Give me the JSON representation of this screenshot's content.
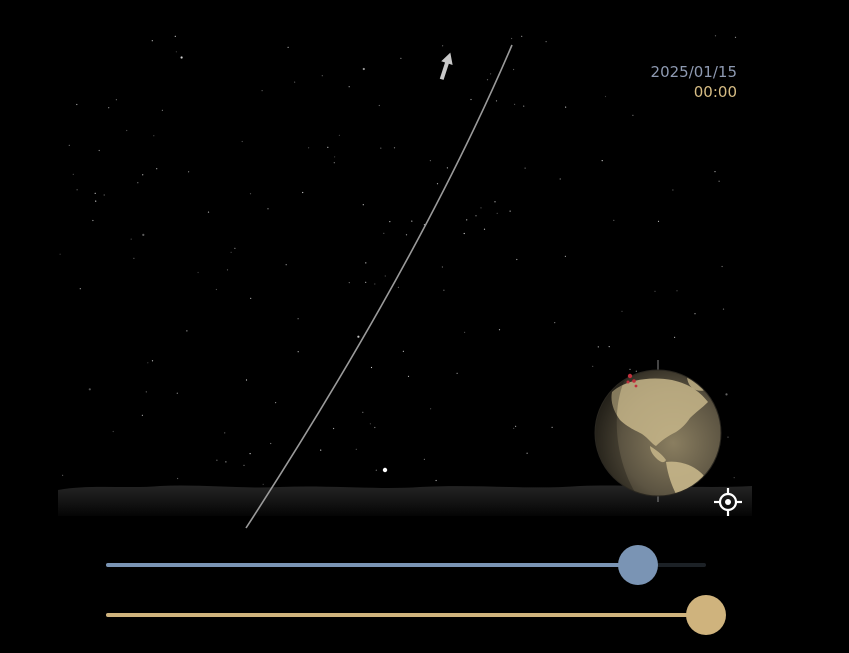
{
  "header": {
    "date": "2025/01/15",
    "time": "00:00"
  },
  "sliders": {
    "primary": {
      "value": 0.886,
      "color": "#7a94b4"
    },
    "secondary": {
      "value": 1.0,
      "color": "#cfb37d"
    }
  },
  "colors": {
    "background": "#000000",
    "orbit": "#9a9a9a",
    "globe_land": "#c7b68a",
    "globe_ocean": "#5e5643",
    "marker": "#c0303c"
  },
  "icons": {
    "recenter": "crosshair-icon",
    "direction": "arrow-icon"
  }
}
